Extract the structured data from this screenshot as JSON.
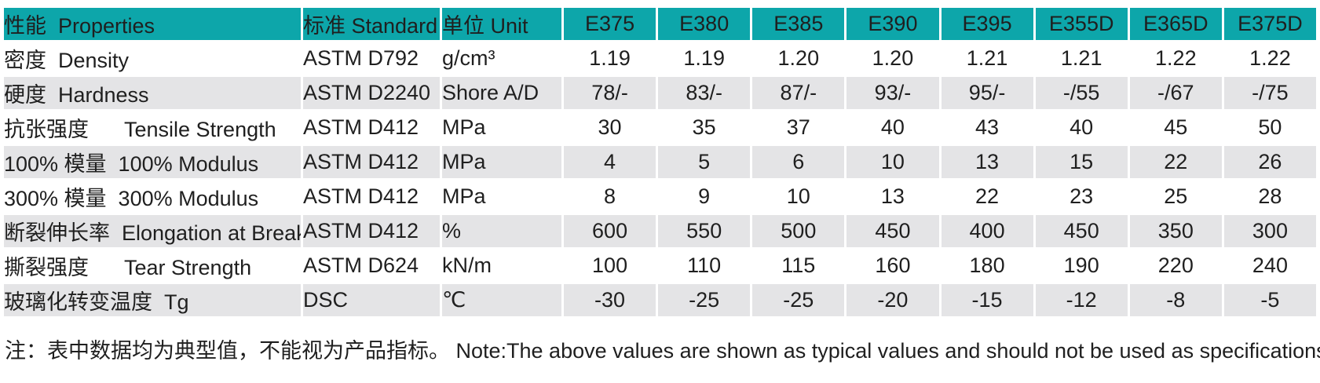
{
  "colors": {
    "header_bg": "#0da6aa",
    "alt_row_bg": "#e4e4e6",
    "row_bg": "#ffffff",
    "text": "#1f1f1f"
  },
  "table": {
    "columns": [
      "性能  Properties",
      "标准 Standard",
      "单位 Unit",
      "E375",
      "E380",
      "E385",
      "E390",
      "E395",
      "E355D",
      "E365D",
      "E375D"
    ],
    "rows": [
      {
        "property": "密度  Density",
        "standard": "ASTM D792",
        "unit": "g/cm³",
        "values": [
          "1.19",
          "1.19",
          "1.20",
          "1.20",
          "1.21",
          "1.21",
          "1.22",
          "1.22"
        ]
      },
      {
        "property": "硬度  Hardness",
        "standard": "ASTM D2240",
        "unit": "Shore A/D",
        "values": [
          "78/-",
          "83/-",
          "87/-",
          "93/-",
          "95/-",
          "-/55",
          "-/67",
          "-/75"
        ]
      },
      {
        "property": "抗张强度      Tensile Strength",
        "standard": "ASTM D412",
        "unit": "MPa",
        "values": [
          "30",
          "35",
          "37",
          "40",
          "43",
          "40",
          "45",
          "50"
        ]
      },
      {
        "property": "100% 模量  100% Modulus",
        "standard": "ASTM D412",
        "unit": "MPa",
        "values": [
          "4",
          "5",
          "6",
          "10",
          "13",
          "15",
          "22",
          "26"
        ]
      },
      {
        "property": "300% 模量  300% Modulus",
        "standard": "ASTM D412",
        "unit": "MPa",
        "values": [
          "8",
          "9",
          "10",
          "13",
          "22",
          "23",
          "25",
          "28"
        ]
      },
      {
        "property": "断裂伸长率  Elongation at Break",
        "standard": "ASTM D412",
        "unit": "%",
        "values": [
          "600",
          "550",
          "500",
          "450",
          "400",
          "450",
          "350",
          "300"
        ]
      },
      {
        "property": "撕裂强度      Tear Strength",
        "standard": "ASTM D624",
        "unit": "kN/m",
        "values": [
          "100",
          "110",
          "115",
          "160",
          "180",
          "190",
          "220",
          "240"
        ]
      },
      {
        "property": "玻璃化转变温度  Tg",
        "standard": "DSC",
        "unit": "℃",
        "values": [
          "-30",
          "-25",
          "-25",
          "-20",
          "-15",
          "-12",
          "-8",
          "-5"
        ]
      }
    ]
  },
  "note": "注：表中数据均为典型值，不能视为产品指标。 Note:The above values are shown as typical values and should not be used as specifications."
}
